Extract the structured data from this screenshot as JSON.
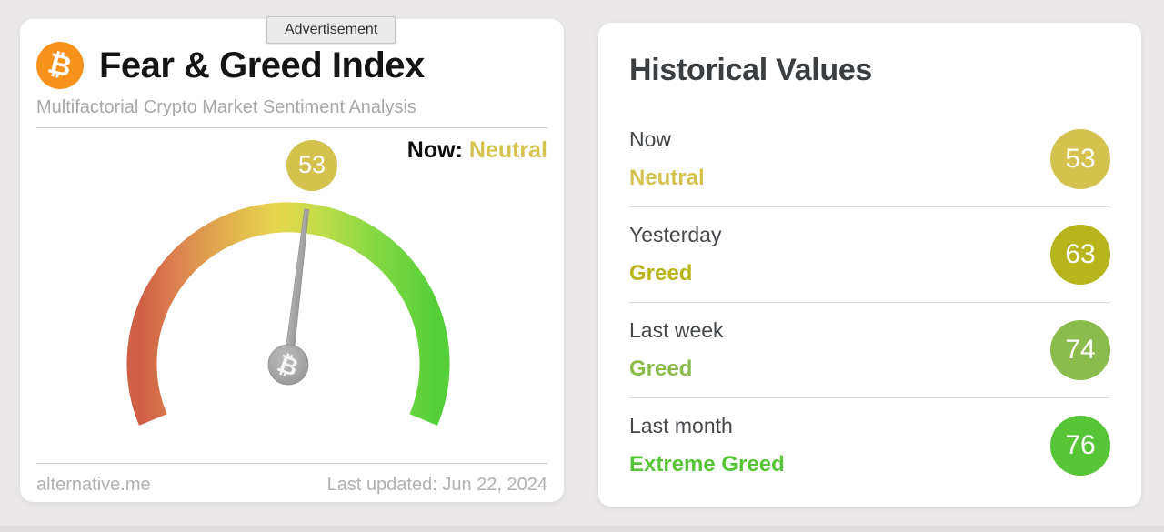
{
  "ad": {
    "label": "Advertisement"
  },
  "left_card": {
    "title": "Fear & Greed Index",
    "subtitle": "Multifactorial Crypto Market Sentiment Analysis",
    "logo_glyph": "₿",
    "logo_color": "#f7931a",
    "now_label": "Now:",
    "gauge": {
      "value": 53,
      "min": 0,
      "max": 100,
      "classification": "Neutral",
      "value_color": "#d3c24e",
      "scale_colors": [
        "#cf5f45",
        "#dc8350",
        "#e2b14e",
        "#e6d74d",
        "#c3dc4a",
        "#83d844",
        "#55cf38"
      ]
    },
    "footer_left": "alternative.me",
    "footer_right": "Last updated: Jun 22, 2024"
  },
  "right_card": {
    "title": "Historical Values",
    "rows": [
      {
        "label": "Now",
        "classification": "Neutral",
        "value": 53,
        "color": "#d3c24e"
      },
      {
        "label": "Yesterday",
        "classification": "Greed",
        "value": 63,
        "color": "#b7b41c"
      },
      {
        "label": "Last week",
        "classification": "Greed",
        "value": 74,
        "color": "#8bbb4d"
      },
      {
        "label": "Last month",
        "classification": "Extreme Greed",
        "value": 76,
        "color": "#58c437"
      }
    ]
  }
}
